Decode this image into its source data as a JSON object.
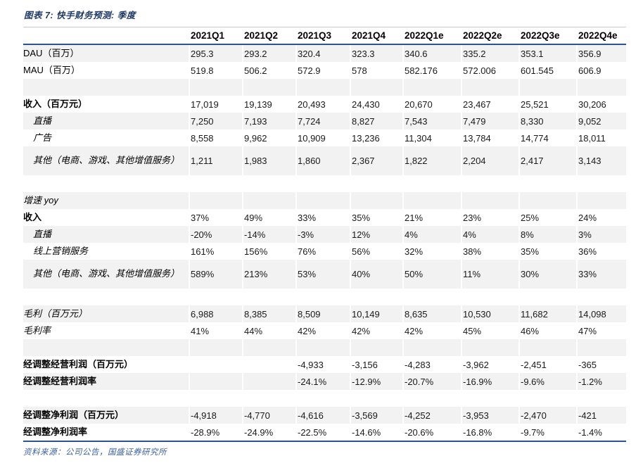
{
  "title": "图表 7: 快手财务预测: 季度",
  "source": "资料来源：公司公告，国盛证券研究所",
  "colors": {
    "title_navy": "#1F3864",
    "rule_blue": "#2E5395",
    "stripe_gray": "#F2F2F2",
    "source_blue": "#3A62A5"
  },
  "table": {
    "columns": [
      "2021Q1",
      "2021Q2",
      "2021Q3",
      "2021Q4",
      "2022Q1e",
      "2022Q2e",
      "2022Q3e",
      "2022Q4e"
    ],
    "rows": [
      {
        "label": "DAU（百万）",
        "style": "plain",
        "values": [
          "295.3",
          "293.2",
          "320.4",
          "323.3",
          "340.6",
          "335.2",
          "353.1",
          "356.9"
        ]
      },
      {
        "label": "MAU（百万）",
        "style": "plain",
        "values": [
          "519.8",
          "506.2",
          "572.9",
          "578",
          "582.176",
          "572.006",
          "601.545",
          "606.9"
        ]
      },
      {
        "label": "",
        "style": "blank",
        "values": [
          "",
          "",
          "",
          "",
          "",
          "",
          "",
          ""
        ]
      },
      {
        "label": "收入（百万元）",
        "style": "bold",
        "values": [
          "17,019",
          "19,139",
          "20,493",
          "24,430",
          "20,670",
          "23,467",
          "25,521",
          "30,206"
        ]
      },
      {
        "label": "直播",
        "style": "sub",
        "values": [
          "7,250",
          "7,193",
          "7,724",
          "8,827",
          "7,543",
          "7,479",
          "8,330",
          "9,052"
        ]
      },
      {
        "label": "广告",
        "style": "sub",
        "values": [
          "8,558",
          "9,962",
          "10,909",
          "13,236",
          "11,304",
          "13,784",
          "14,774",
          "18,011"
        ]
      },
      {
        "label": "其他（电商、游戏、其他增值服务）",
        "style": "sub tall",
        "values": [
          "1,211",
          "1,983",
          "1,860",
          "2,367",
          "1,822",
          "2,204",
          "2,417",
          "3,143"
        ]
      },
      {
        "label": "",
        "style": "blank",
        "values": [
          "",
          "",
          "",
          "",
          "",
          "",
          "",
          ""
        ]
      },
      {
        "label": "增速 yoy",
        "style": "italic",
        "values": [
          "",
          "",
          "",
          "",
          "",
          "",
          "",
          ""
        ]
      },
      {
        "label": "收入",
        "style": "bold",
        "values": [
          "37%",
          "49%",
          "33%",
          "35%",
          "21%",
          "23%",
          "25%",
          "24%"
        ]
      },
      {
        "label": "直播",
        "style": "sub",
        "values": [
          "-20%",
          "-14%",
          "-3%",
          "12%",
          "4%",
          "4%",
          "8%",
          "3%"
        ]
      },
      {
        "label": "线上营销服务",
        "style": "sub",
        "values": [
          "161%",
          "156%",
          "76%",
          "56%",
          "32%",
          "38%",
          "35%",
          "36%"
        ]
      },
      {
        "label": "其他（电商、游戏、其他增值服务）",
        "style": "sub tall",
        "values": [
          "589%",
          "213%",
          "53%",
          "40%",
          "50%",
          "11%",
          "30%",
          "33%"
        ]
      },
      {
        "label": "",
        "style": "blank",
        "values": [
          "",
          "",
          "",
          "",
          "",
          "",
          "",
          ""
        ]
      },
      {
        "label": "毛利（百万元）",
        "style": "italic",
        "values": [
          "6,988",
          "8,385",
          "8,509",
          "10,149",
          "8,635",
          "10,530",
          "11,682",
          "14,098"
        ]
      },
      {
        "label": "毛利率",
        "style": "italic",
        "values": [
          "41%",
          "44%",
          "42%",
          "42%",
          "42%",
          "45%",
          "46%",
          "47%"
        ]
      },
      {
        "label": "",
        "style": "blank",
        "values": [
          "",
          "",
          "",
          "",
          "",
          "",
          "",
          ""
        ]
      },
      {
        "label": "经调整经营利润（百万元）",
        "style": "bold",
        "values": [
          "",
          "",
          "-4,933",
          "-3,156",
          "-4,283",
          "-3,962",
          "-2,451",
          "-365"
        ]
      },
      {
        "label": "经调整经营利润率",
        "style": "bold",
        "values": [
          "",
          "",
          "-24.1%",
          "-12.9%",
          "-20.7%",
          "-16.9%",
          "-9.6%",
          "-1.2%"
        ]
      },
      {
        "label": "",
        "style": "blank",
        "values": [
          "",
          "",
          "",
          "",
          "",
          "",
          "",
          ""
        ]
      },
      {
        "label": "经调整净利润（百万元）",
        "style": "bold",
        "values": [
          "-4,918",
          "-4,770",
          "-4,616",
          "-3,569",
          "-4,252",
          "-3,953",
          "-2,470",
          "-421"
        ]
      },
      {
        "label": "经调整净利润率",
        "style": "bold",
        "values": [
          "-28.9%",
          "-24.9%",
          "-22.5%",
          "-14.6%",
          "-20.6%",
          "-16.8%",
          "-9.7%",
          "-1.4%"
        ]
      }
    ]
  }
}
